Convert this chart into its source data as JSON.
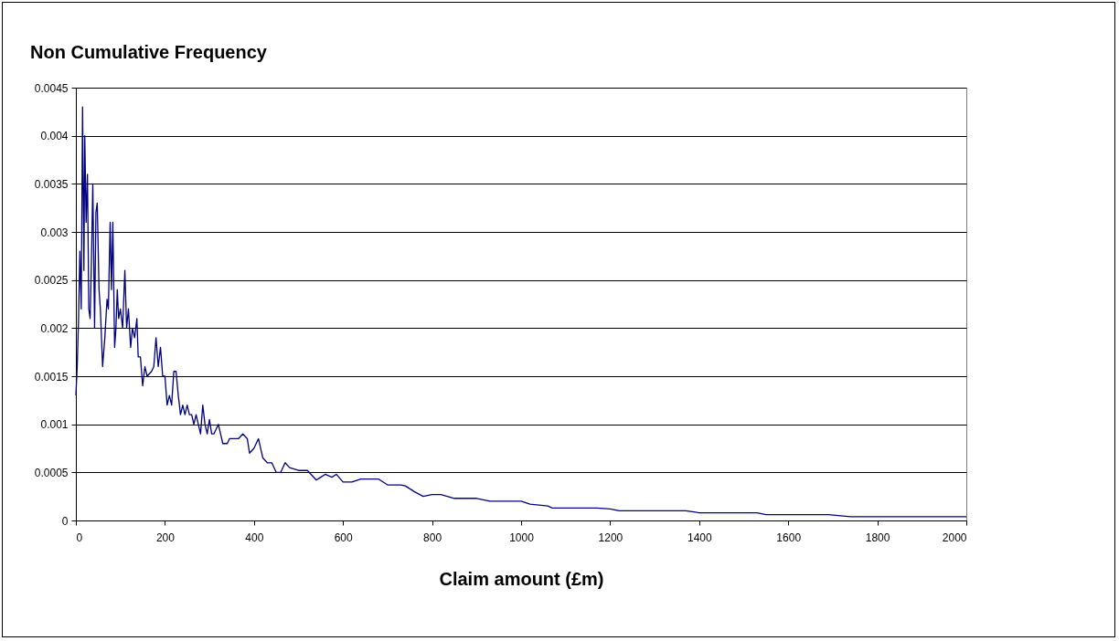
{
  "chart_data": {
    "type": "line",
    "title": "Non Cumulative Frequency",
    "xlabel": "Claim amount (£m)",
    "xlim": [
      0,
      2000
    ],
    "xticks": [
      0,
      200,
      400,
      600,
      800,
      1000,
      1200,
      1400,
      1600,
      1800,
      2000
    ],
    "ylim": [
      0,
      0.0045
    ],
    "yticks": [
      0,
      0.0005,
      0.001,
      0.0015,
      0.002,
      0.0025,
      0.003,
      0.0035,
      0.004,
      0.0045
    ],
    "grid": "y",
    "legend": false,
    "marker": "none",
    "line_style": "solid",
    "series": [
      {
        "color": "#000080",
        "x": [
          0,
          3,
          6,
          9,
          12,
          15,
          18,
          20,
          23,
          26,
          29,
          32,
          35,
          38,
          42,
          45,
          48,
          52,
          55,
          60,
          65,
          70,
          73,
          77,
          80,
          83,
          87,
          90,
          93,
          96,
          100,
          105,
          110,
          114,
          118,
          123,
          127,
          132,
          137,
          140,
          145,
          150,
          155,
          160,
          170,
          175,
          180,
          185,
          190,
          195,
          200,
          205,
          210,
          215,
          220,
          225,
          230,
          235,
          240,
          245,
          250,
          255,
          260,
          265,
          270,
          275,
          280,
          285,
          290,
          295,
          300,
          305,
          310,
          320,
          330,
          340,
          345,
          355,
          365,
          375,
          385,
          390,
          400,
          410,
          420,
          430,
          440,
          450,
          460,
          470,
          480,
          500,
          520,
          540,
          550,
          560,
          575,
          585,
          600,
          620,
          640,
          680,
          700,
          730,
          740,
          760,
          780,
          800,
          820,
          850,
          870,
          900,
          930,
          1000,
          1020,
          1060,
          1070,
          1170,
          1200,
          1220,
          1370,
          1400,
          1530,
          1550,
          1690,
          1740,
          2000
        ],
        "values": [
          0.0013,
          0.0016,
          0.0021,
          0.0028,
          0.0022,
          0.0043,
          0.0026,
          0.004,
          0.0031,
          0.0036,
          0.0022,
          0.0021,
          0.0027,
          0.0035,
          0.002,
          0.0032,
          0.0033,
          0.0024,
          0.0022,
          0.0016,
          0.0019,
          0.0023,
          0.0022,
          0.0031,
          0.0024,
          0.0031,
          0.0018,
          0.002,
          0.0024,
          0.0021,
          0.0022,
          0.002,
          0.0026,
          0.002,
          0.0022,
          0.0018,
          0.002,
          0.0019,
          0.0021,
          0.0017,
          0.0017,
          0.0014,
          0.0016,
          0.0015,
          0.00155,
          0.0016,
          0.0019,
          0.0016,
          0.0018,
          0.0015,
          0.0015,
          0.0012,
          0.0013,
          0.0012,
          0.00155,
          0.00155,
          0.0013,
          0.0011,
          0.0012,
          0.0011,
          0.0012,
          0.0011,
          0.0011,
          0.001,
          0.0011,
          0.001,
          0.0009,
          0.0012,
          0.001,
          0.0009,
          0.00105,
          0.0009,
          0.0009,
          0.001,
          0.0008,
          0.0008,
          0.00085,
          0.00085,
          0.00085,
          0.0009,
          0.00085,
          0.0007,
          0.00075,
          0.00085,
          0.00065,
          0.0006,
          0.0006,
          0.0005,
          0.0005,
          0.0006,
          0.00055,
          0.00052,
          0.00052,
          0.00042,
          0.00045,
          0.00048,
          0.00045,
          0.00048,
          0.0004,
          0.0004,
          0.00043,
          0.00043,
          0.00037,
          0.00037,
          0.00036,
          0.0003,
          0.00025,
          0.00027,
          0.00027,
          0.00023,
          0.00023,
          0.00023,
          0.0002,
          0.0002,
          0.00017,
          0.00015,
          0.00013,
          0.00013,
          0.00012,
          0.0001,
          0.0001,
          8e-05,
          8e-05,
          6e-05,
          6e-05,
          4e-05,
          4e-05
        ]
      }
    ]
  }
}
